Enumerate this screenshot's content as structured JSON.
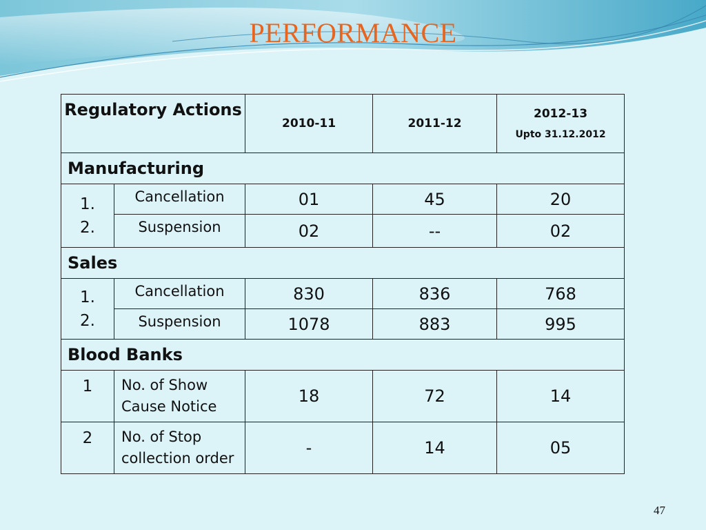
{
  "slide": {
    "title": "PERFORMANCE",
    "page_number": "47"
  },
  "table": {
    "header": {
      "regulatory_actions": "Regulatory Actions",
      "years": [
        "2010-11",
        "2011-12",
        "2012-13"
      ],
      "year3_note": "Upto 31.12.2012"
    },
    "manufacturing": {
      "title": "Manufacturing",
      "numbers": [
        "1.",
        "2."
      ],
      "rows": [
        {
          "label": "Cancellation",
          "values": [
            "01",
            "45",
            "20"
          ]
        },
        {
          "label": "Suspension",
          "values": [
            "02",
            "--",
            "02"
          ]
        }
      ]
    },
    "sales": {
      "title": "Sales",
      "numbers": [
        "1.",
        "2."
      ],
      "rows": [
        {
          "label": "Cancellation",
          "values": [
            "830",
            "836",
            "768"
          ]
        },
        {
          "label": "Suspension",
          "values": [
            "1078",
            "883",
            "995"
          ]
        }
      ]
    },
    "blood_banks": {
      "title": "Blood Banks",
      "rows": [
        {
          "number": "1",
          "label_line1": "No. of Show",
          "label_line2": "Cause Notice",
          "values": [
            "18",
            "72",
            "14"
          ]
        },
        {
          "number": "2",
          "label_line1": "No. of Stop",
          "label_line2": "collection order",
          "values": [
            "-",
            "14",
            "05"
          ]
        }
      ]
    }
  }
}
